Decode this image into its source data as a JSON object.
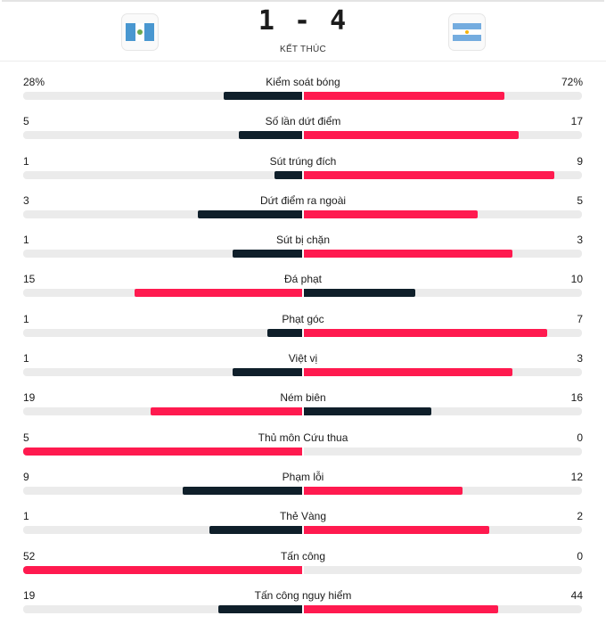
{
  "match": {
    "home_team_flag": "guatemala-flag-icon",
    "away_team_flag": "argentina-flag-icon",
    "score": "1 - 4",
    "status": "KẾT THÚC"
  },
  "colors": {
    "winner": "#ff1a4f",
    "loser": "#0f1f2a",
    "track": "#ebebeb",
    "guatemala_blue": "#4997d0",
    "argentina_blue": "#74acdf"
  },
  "stats": [
    {
      "name": "Kiểm soát bóng",
      "home": "28%",
      "away": "72%",
      "home_value": 28,
      "away_value": 72
    },
    {
      "name": "Số lần dứt điểm",
      "home": "5",
      "away": "17",
      "home_value": 5,
      "away_value": 17
    },
    {
      "name": "Sút trúng đích",
      "home": "1",
      "away": "9",
      "home_value": 1,
      "away_value": 9
    },
    {
      "name": "Dứt điểm ra ngoài",
      "home": "3",
      "away": "5",
      "home_value": 3,
      "away_value": 5
    },
    {
      "name": "Sút bị chặn",
      "home": "1",
      "away": "3",
      "home_value": 1,
      "away_value": 3
    },
    {
      "name": "Đá phạt",
      "home": "15",
      "away": "10",
      "home_value": 15,
      "away_value": 10
    },
    {
      "name": "Phạt góc",
      "home": "1",
      "away": "7",
      "home_value": 1,
      "away_value": 7
    },
    {
      "name": "Việt vị",
      "home": "1",
      "away": "3",
      "home_value": 1,
      "away_value": 3
    },
    {
      "name": "Ném biên",
      "home": "19",
      "away": "16",
      "home_value": 19,
      "away_value": 16
    },
    {
      "name": "Thủ môn Cứu thua",
      "home": "5",
      "away": "0",
      "home_value": 5,
      "away_value": 0
    },
    {
      "name": "Phạm lỗi",
      "home": "9",
      "away": "12",
      "home_value": 9,
      "away_value": 12
    },
    {
      "name": "Thẻ Vàng",
      "home": "1",
      "away": "2",
      "home_value": 1,
      "away_value": 2
    },
    {
      "name": "Tấn công",
      "home": "52",
      "away": "0",
      "home_value": 52,
      "away_value": 0
    },
    {
      "name": "Tấn công nguy hiểm",
      "home": "19",
      "away": "44",
      "home_value": 19,
      "away_value": 44
    }
  ]
}
